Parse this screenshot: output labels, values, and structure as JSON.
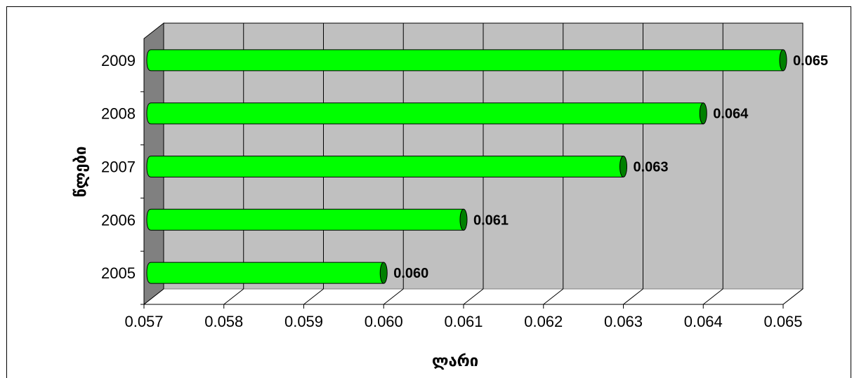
{
  "chart_data": {
    "type": "bar",
    "orientation": "horizontal",
    "categories": [
      "2005",
      "2006",
      "2007",
      "2008",
      "2009"
    ],
    "values": [
      0.06,
      0.061,
      0.063,
      0.064,
      0.065
    ],
    "value_labels": [
      "0.060",
      "0.061",
      "0.063",
      "0.064",
      "0.065"
    ],
    "xlabel": "ლარი",
    "ylabel": "წლები",
    "xlim": [
      0.057,
      0.065
    ],
    "x_ticks": [
      "0.057",
      "0.058",
      "0.059",
      "0.060",
      "0.061",
      "0.062",
      "0.063",
      "0.064",
      "0.065"
    ],
    "grid": true,
    "bar_color": "#00ff00",
    "bar_end_color": "#008000",
    "plot_background": "#c0c0c0"
  }
}
